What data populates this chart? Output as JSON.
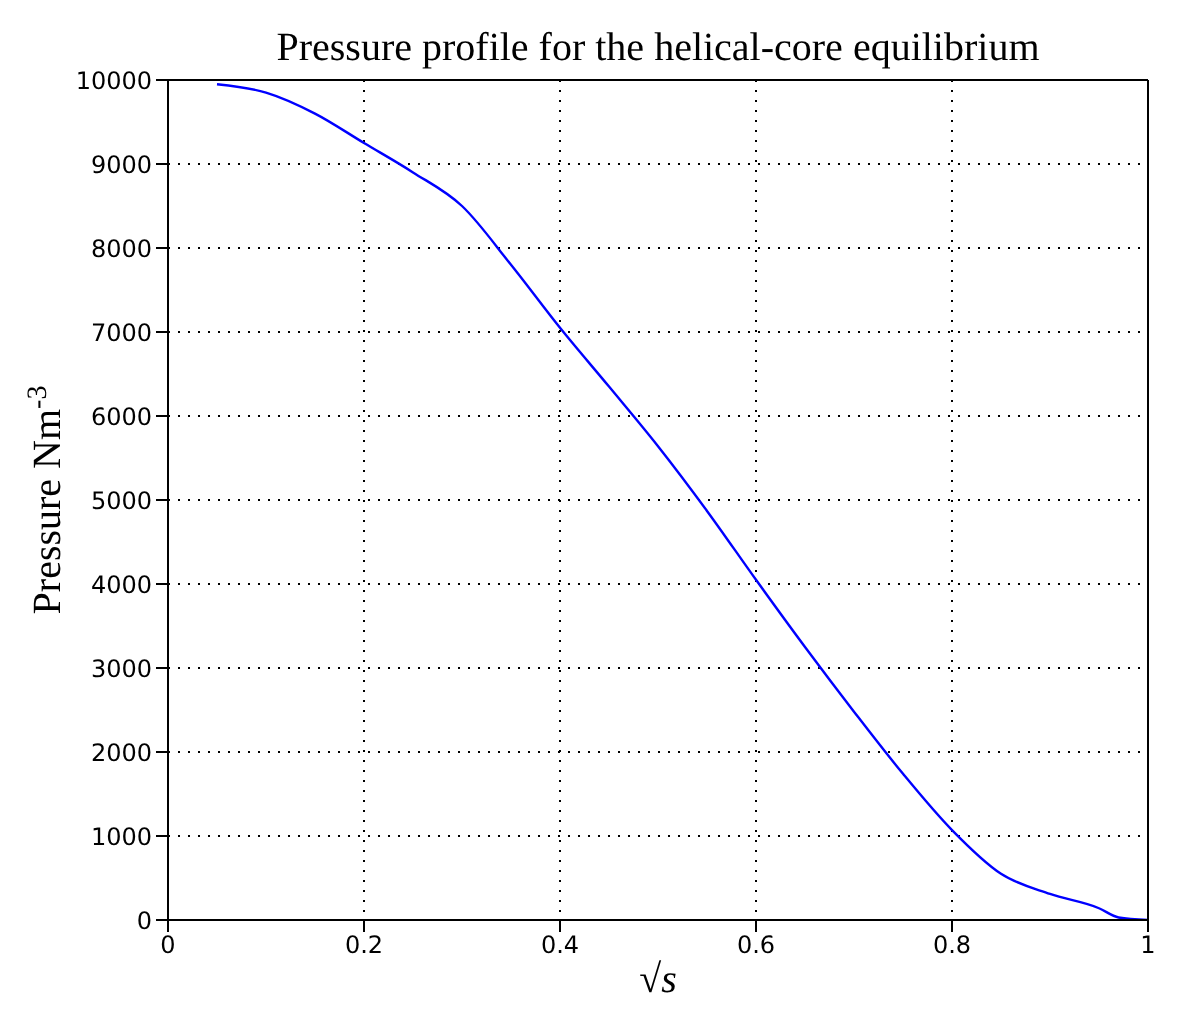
{
  "chart_data": {
    "type": "line",
    "title": "Pressure profile for the helical-core equilibrium",
    "xlabel": "√s",
    "ylabel": "Pressure Nm$^{-3}$",
    "x": [
      0.05,
      0.1,
      0.15,
      0.2,
      0.25,
      0.3,
      0.35,
      0.4,
      0.45,
      0.5,
      0.55,
      0.6,
      0.65,
      0.7,
      0.75,
      0.8,
      0.85,
      0.9,
      0.95,
      0.97,
      1.0
    ],
    "series": [
      {
        "color": "#0000ff",
        "values": [
          9950,
          9850,
          9600,
          9250,
          8900,
          8500,
          7800,
          7050,
          6350,
          5640,
          4870,
          4050,
          3250,
          2480,
          1740,
          1070,
          550,
          310,
          140,
          30,
          0
        ]
      }
    ],
    "xlim": [
      0,
      1
    ],
    "xticks": [
      0,
      0.2,
      0.4,
      0.6,
      0.8,
      1
    ],
    "ylim": [
      0,
      10000
    ],
    "yticks": [
      0,
      1000,
      2000,
      3000,
      4000,
      5000,
      6000,
      7000,
      8000,
      9000,
      10000
    ],
    "grid": true,
    "line_style": "solid",
    "marker": "none"
  }
}
